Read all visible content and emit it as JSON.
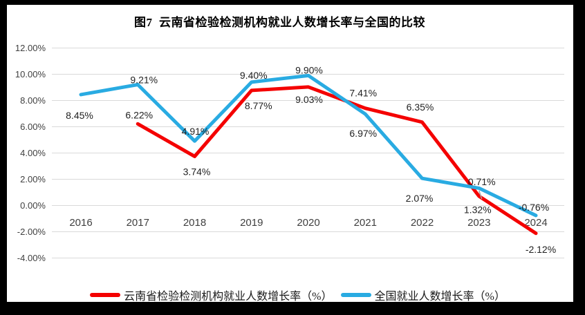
{
  "chart_data": {
    "type": "line",
    "title": "图7  云南省检验检测机构就业人数增长率与全国的比较",
    "categories": [
      "2016",
      "2017",
      "2018",
      "2019",
      "2020",
      "2021",
      "2022",
      "2023",
      "2024"
    ],
    "yticks": [
      "12.00%",
      "10.00%",
      "8.00%",
      "6.00%",
      "4.00%",
      "2.00%",
      "0.00%",
      "-2.00%",
      "-4.00%"
    ],
    "ylim": [
      -4,
      12
    ],
    "ytick_step": 2,
    "grid": true,
    "legend_position": "bottom",
    "colors": {
      "grid": "#d9d9d9",
      "axis_text": "#3f3f3f",
      "label_text": "#1f1f1f",
      "leader": "#a6a6a6"
    },
    "series": [
      {
        "name": "云南省检验检测机构就业人数增长率（%）",
        "color": "#f40000",
        "values": [
          null,
          6.22,
          3.74,
          8.77,
          9.03,
          7.41,
          6.35,
          0.71,
          -2.12
        ],
        "labels": [
          "",
          "6.22%",
          "3.74%",
          "8.77%",
          "9.03%",
          "7.41%",
          "6.35%",
          "0.71%",
          "-2.12%"
        ],
        "label_offsets": [
          null,
          [
            2,
            -13
          ],
          [
            3,
            22
          ],
          [
            10,
            22
          ],
          [
            1,
            18
          ],
          [
            -3,
            -22
          ],
          [
            -3,
            -22
          ],
          [
            4,
            -21
          ],
          [
            7,
            23
          ]
        ],
        "leader_at": 7
      },
      {
        "name": "全国就业人数增长率（%）",
        "color": "#29abe2",
        "values": [
          8.45,
          9.21,
          4.91,
          9.4,
          9.9,
          6.97,
          2.07,
          1.32,
          -0.76
        ],
        "labels": [
          "8.45%",
          "9.21%",
          "4.91%",
          "9.40%",
          "9.90%",
          "6.97%",
          "2.07%",
          "1.32%",
          "-0.76%"
        ],
        "label_offsets": [
          [
            -2,
            30
          ],
          [
            9,
            -7
          ],
          [
            1,
            -14
          ],
          [
            3,
            -10
          ],
          [
            1,
            -8
          ],
          [
            -3,
            28
          ],
          [
            -4,
            29
          ],
          [
            -2,
            31
          ],
          [
            -3,
            -12
          ]
        ]
      }
    ]
  }
}
